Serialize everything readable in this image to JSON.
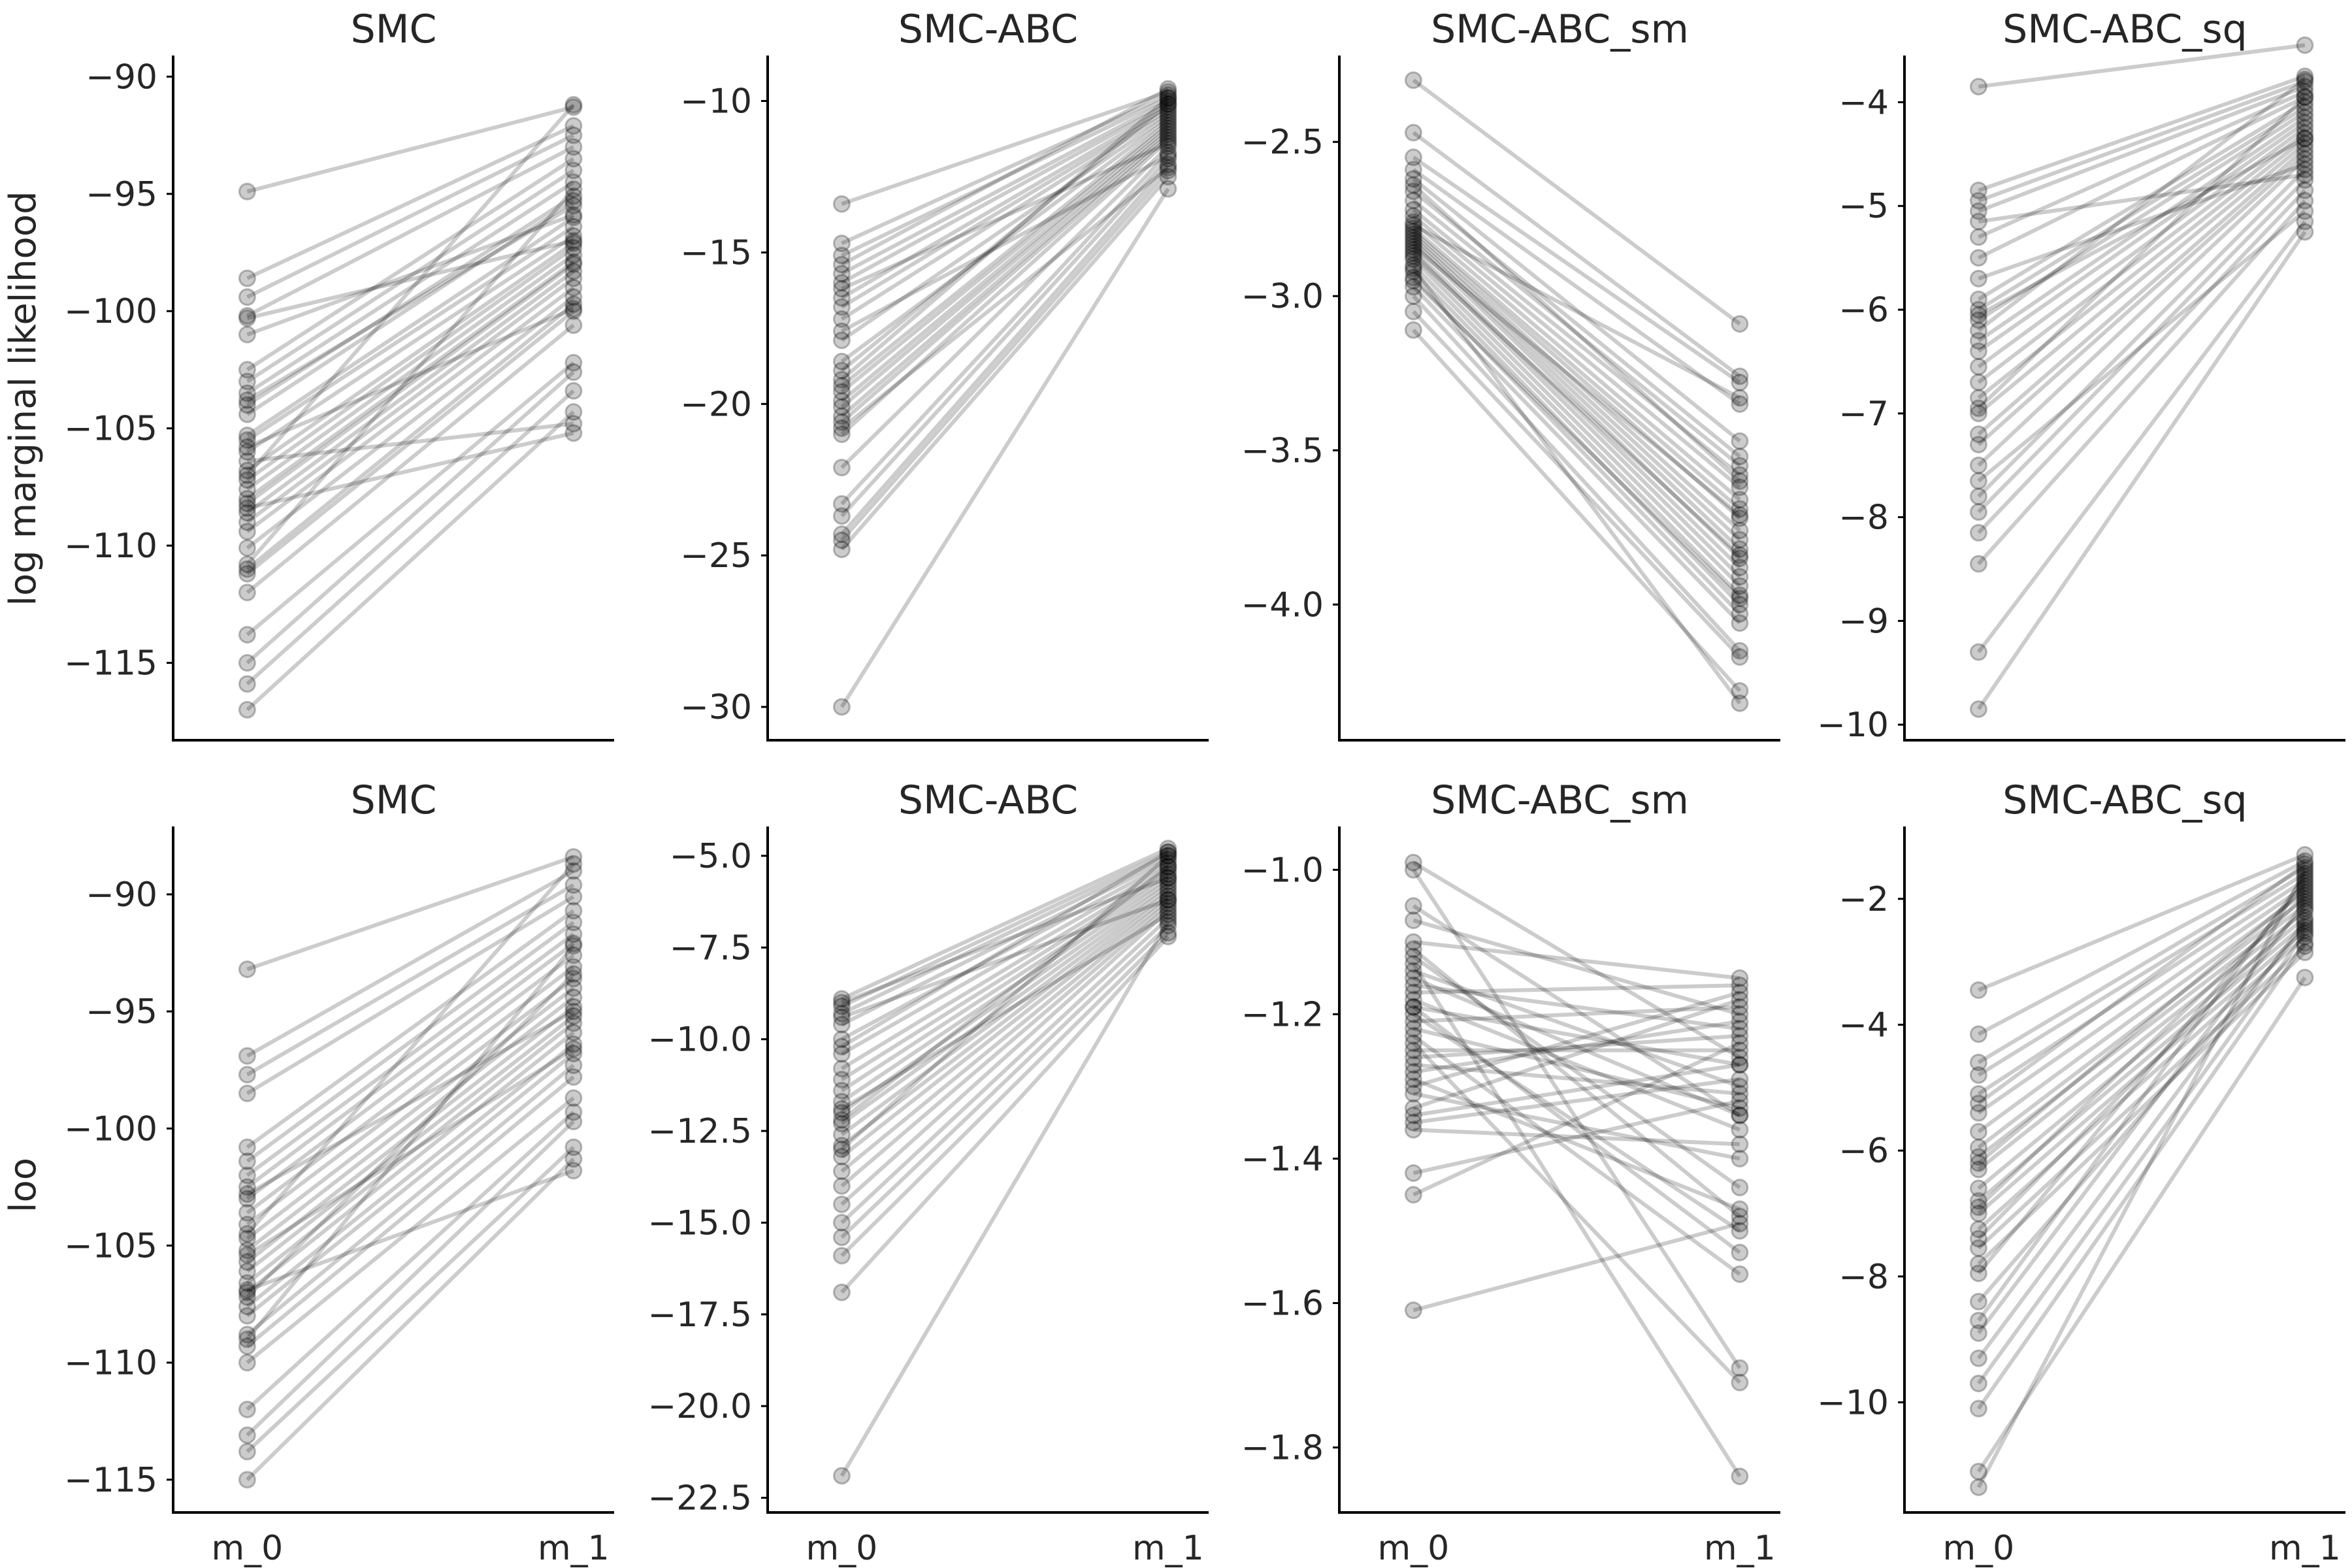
{
  "ylabels": {
    "row0": "log marginal likelihood",
    "row1": "loo"
  },
  "chart_data": [
    {
      "type": "line",
      "title": "SMC",
      "row": 0,
      "col": 0,
      "categories": [],
      "ylim": [
        -118.3,
        -89.1
      ],
      "yticks": [
        -90,
        -95,
        -100,
        -105,
        -110,
        -115
      ],
      "ytick_labels": [
        "−90",
        "−95",
        "−100",
        "−105",
        "−110",
        "−115"
      ],
      "pairs": [
        [
          -94.9,
          -91.3
        ],
        [
          -98.6,
          -92.1
        ],
        [
          -99.4,
          -92.5
        ],
        [
          -100.2,
          -93.0
        ],
        [
          -102.5,
          -93.5
        ],
        [
          -103.0,
          -94.0
        ],
        [
          -103.5,
          -94.5
        ],
        [
          -104.0,
          -95.1
        ],
        [
          -104.4,
          -95.3
        ],
        [
          -105.3,
          -96.0
        ],
        [
          -105.5,
          -96.4
        ],
        [
          -106.0,
          -96.8
        ],
        [
          -106.8,
          -97.1
        ],
        [
          -107.2,
          -97.3
        ],
        [
          -107.6,
          -97.6
        ],
        [
          -108.0,
          -97.9
        ],
        [
          -108.2,
          -98.0
        ],
        [
          -108.6,
          -98.3
        ],
        [
          -109.0,
          -98.6
        ],
        [
          -109.4,
          -99.0
        ],
        [
          -110.1,
          -99.4
        ],
        [
          -111.0,
          -99.7
        ],
        [
          -111.2,
          -100.0
        ],
        [
          -112.0,
          -100.6
        ],
        [
          -113.8,
          -102.2
        ],
        [
          -115.0,
          -102.6
        ],
        [
          -115.9,
          -103.4
        ],
        [
          -117.0,
          -104.3
        ],
        [
          -108.4,
          -105.2
        ],
        [
          -107.0,
          -91.2
        ],
        [
          -103.8,
          -95.5
        ],
        [
          -105.8,
          -99.9
        ],
        [
          -110.8,
          -94.8
        ],
        [
          -100.3,
          -97.0
        ],
        [
          -106.4,
          -104.8
        ],
        [
          -101.0,
          -95.9
        ]
      ]
    },
    {
      "type": "line",
      "title": "SMC-ABC",
      "row": 0,
      "col": 1,
      "categories": [],
      "ylim": [
        -31.1,
        -8.5
      ],
      "yticks": [
        -10,
        -15,
        -20,
        -25,
        -30
      ],
      "ytick_labels": [
        "−10",
        "−15",
        "−20",
        "−25",
        "−30"
      ],
      "pairs": [
        [
          -13.4,
          -9.7
        ],
        [
          -14.7,
          -9.8
        ],
        [
          -15.1,
          -9.9
        ],
        [
          -15.7,
          -10.0
        ],
        [
          -16.0,
          -10.1
        ],
        [
          -16.5,
          -10.2
        ],
        [
          -16.8,
          -10.3
        ],
        [
          -17.2,
          -10.4
        ],
        [
          -17.9,
          -10.5
        ],
        [
          -18.6,
          -10.6
        ],
        [
          -19.4,
          -10.7
        ],
        [
          -19.6,
          -10.8
        ],
        [
          -19.9,
          -10.9
        ],
        [
          -20.1,
          -11.0
        ],
        [
          -20.4,
          -11.1
        ],
        [
          -20.6,
          -11.2
        ],
        [
          -21.0,
          -11.3
        ],
        [
          -22.1,
          -11.5
        ],
        [
          -23.3,
          -11.7
        ],
        [
          -23.7,
          -11.9
        ],
        [
          -24.3,
          -12.1
        ],
        [
          -24.5,
          -12.3
        ],
        [
          -24.8,
          -12.5
        ],
        [
          -30.0,
          -12.9
        ],
        [
          -15.4,
          -9.6
        ],
        [
          -17.6,
          -11.8
        ],
        [
          -18.9,
          -10.1
        ],
        [
          -20.8,
          -12.2
        ],
        [
          -19.2,
          -9.9
        ],
        [
          -16.2,
          -11.4
        ]
      ]
    },
    {
      "type": "line",
      "title": "SMC-ABC_sm",
      "row": 0,
      "col": 2,
      "categories": [],
      "ylim": [
        -4.44,
        -2.22
      ],
      "yticks": [
        -2.5,
        -3.0,
        -3.5,
        -4.0
      ],
      "ytick_labels": [
        "−2.5",
        "−3.0",
        "−3.5",
        "−4.0"
      ],
      "pairs": [
        [
          -2.3,
          -3.09
        ],
        [
          -2.47,
          -3.26
        ],
        [
          -2.55,
          -3.28
        ],
        [
          -2.59,
          -3.35
        ],
        [
          -2.62,
          -3.47
        ],
        [
          -2.66,
          -3.52
        ],
        [
          -2.69,
          -3.55
        ],
        [
          -2.72,
          -3.58
        ],
        [
          -2.74,
          -3.62
        ],
        [
          -2.76,
          -3.66
        ],
        [
          -2.78,
          -3.69
        ],
        [
          -2.79,
          -3.72
        ],
        [
          -2.8,
          -3.76
        ],
        [
          -2.81,
          -3.79
        ],
        [
          -2.82,
          -3.82
        ],
        [
          -2.83,
          -3.85
        ],
        [
          -2.85,
          -3.88
        ],
        [
          -2.86,
          -3.91
        ],
        [
          -2.88,
          -3.94
        ],
        [
          -2.9,
          -3.97
        ],
        [
          -2.92,
          -4.0
        ],
        [
          -2.94,
          -4.03
        ],
        [
          -2.97,
          -4.06
        ],
        [
          -3.0,
          -4.15
        ],
        [
          -3.05,
          -4.17
        ],
        [
          -3.11,
          -4.28
        ],
        [
          -2.91,
          -4.32
        ],
        [
          -2.77,
          -3.33
        ],
        [
          -2.84,
          -3.71
        ],
        [
          -2.87,
          -3.84
        ],
        [
          -2.64,
          -3.6
        ],
        [
          -2.95,
          -3.98
        ]
      ]
    },
    {
      "type": "line",
      "title": "SMC-ABC_sq",
      "row": 0,
      "col": 3,
      "categories": [],
      "ylim": [
        -10.15,
        -3.55
      ],
      "yticks": [
        -4,
        -5,
        -6,
        -7,
        -8,
        -9,
        -10
      ],
      "ytick_labels": [
        "−4",
        "−5",
        "−6",
        "−7",
        "−8",
        "−9",
        "−10"
      ],
      "pairs": [
        [
          -3.85,
          -3.45
        ],
        [
          -4.85,
          -3.75
        ],
        [
          -4.95,
          -3.8
        ],
        [
          -5.05,
          -3.85
        ],
        [
          -5.3,
          -3.9
        ],
        [
          -5.5,
          -3.95
        ],
        [
          -5.9,
          -4.0
        ],
        [
          -6.0,
          -4.05
        ],
        [
          -6.1,
          -4.1
        ],
        [
          -6.3,
          -4.15
        ],
        [
          -6.4,
          -4.2
        ],
        [
          -6.55,
          -4.25
        ],
        [
          -6.7,
          -4.3
        ],
        [
          -6.85,
          -4.35
        ],
        [
          -7.0,
          -4.4
        ],
        [
          -7.2,
          -4.45
        ],
        [
          -7.3,
          -4.5
        ],
        [
          -7.5,
          -4.55
        ],
        [
          -7.8,
          -4.65
        ],
        [
          -7.95,
          -4.75
        ],
        [
          -8.15,
          -4.85
        ],
        [
          -8.45,
          -4.95
        ],
        [
          -9.3,
          -5.15
        ],
        [
          -9.85,
          -5.25
        ],
        [
          -6.2,
          -3.78
        ],
        [
          -5.7,
          -4.6
        ],
        [
          -6.95,
          -3.95
        ],
        [
          -7.65,
          -5.05
        ],
        [
          -6.05,
          -4.35
        ],
        [
          -5.15,
          -4.7
        ]
      ]
    },
    {
      "type": "line",
      "title": "SMC",
      "row": 1,
      "col": 0,
      "categories": [
        "m_0",
        "m_1"
      ],
      "ylim": [
        -116.4,
        -87.1
      ],
      "yticks": [
        -90,
        -95,
        -100,
        -105,
        -110,
        -115
      ],
      "ytick_labels": [
        "−90",
        "−95",
        "−100",
        "−105",
        "−110",
        "−115"
      ],
      "pairs": [
        [
          -93.2,
          -88.4
        ],
        [
          -96.9,
          -89.0
        ],
        [
          -97.7,
          -89.6
        ],
        [
          -98.5,
          -90.1
        ],
        [
          -100.8,
          -90.7
        ],
        [
          -101.4,
          -91.2
        ],
        [
          -102.0,
          -91.7
        ],
        [
          -102.5,
          -92.1
        ],
        [
          -103.0,
          -92.6
        ],
        [
          -103.6,
          -93.1
        ],
        [
          -104.1,
          -93.6
        ],
        [
          -104.7,
          -94.0
        ],
        [
          -105.2,
          -94.4
        ],
        [
          -105.7,
          -94.8
        ],
        [
          -106.1,
          -95.2
        ],
        [
          -106.6,
          -95.5
        ],
        [
          -107.0,
          -95.9
        ],
        [
          -107.6,
          -96.4
        ],
        [
          -108.0,
          -96.8
        ],
        [
          -108.8,
          -97.3
        ],
        [
          -109.3,
          -97.8
        ],
        [
          -110.0,
          -98.7
        ],
        [
          -112.0,
          -99.3
        ],
        [
          -113.1,
          -99.7
        ],
        [
          -113.8,
          -100.8
        ],
        [
          -115.0,
          -101.3
        ],
        [
          -106.9,
          -101.8
        ],
        [
          -104.5,
          -88.7
        ],
        [
          -109.0,
          -92.2
        ],
        [
          -102.8,
          -95.0
        ],
        [
          -107.2,
          -93.4
        ],
        [
          -105.4,
          -96.6
        ]
      ]
    },
    {
      "type": "line",
      "title": "SMC-ABC",
      "row": 1,
      "col": 1,
      "categories": [
        "m_0",
        "m_1"
      ],
      "ylim": [
        -22.9,
        -4.2
      ],
      "yticks": [
        -5.0,
        -7.5,
        -10.0,
        -12.5,
        -15.0,
        -17.5,
        -20.0,
        -22.5
      ],
      "ytick_labels": [
        "−5.0",
        "−7.5",
        "−10.0",
        "−12.5",
        "−15.0",
        "−17.5",
        "−20.0",
        "−22.5"
      ],
      "pairs": [
        [
          -8.9,
          -4.8
        ],
        [
          -9.1,
          -4.9
        ],
        [
          -9.3,
          -5.0
        ],
        [
          -9.6,
          -5.1
        ],
        [
          -10.0,
          -5.2
        ],
        [
          -10.4,
          -5.3
        ],
        [
          -10.8,
          -5.4
        ],
        [
          -11.1,
          -5.5
        ],
        [
          -11.4,
          -5.6
        ],
        [
          -11.7,
          -5.7
        ],
        [
          -12.0,
          -5.8
        ],
        [
          -12.3,
          -5.9
        ],
        [
          -12.6,
          -6.0
        ],
        [
          -12.9,
          -6.1
        ],
        [
          -13.2,
          -6.2
        ],
        [
          -13.6,
          -6.3
        ],
        [
          -14.0,
          -6.4
        ],
        [
          -14.5,
          -6.5
        ],
        [
          -15.0,
          -6.7
        ],
        [
          -15.4,
          -6.9
        ],
        [
          -15.9,
          -7.1
        ],
        [
          -16.9,
          -7.2
        ],
        [
          -21.9,
          -6.8
        ],
        [
          -9.0,
          -5.6
        ],
        [
          -10.2,
          -4.9
        ],
        [
          -11.9,
          -6.6
        ],
        [
          -13.0,
          -5.0
        ],
        [
          -9.4,
          -6.2
        ],
        [
          -12.2,
          -5.3
        ]
      ]
    },
    {
      "type": "line",
      "title": "SMC-ABC_sm",
      "row": 1,
      "col": 2,
      "categories": [
        "m_0",
        "m_1"
      ],
      "ylim": [
        -1.89,
        -0.94
      ],
      "yticks": [
        -1.0,
        -1.2,
        -1.4,
        -1.6,
        -1.8
      ],
      "ytick_labels": [
        "−1.0",
        "−1.2",
        "−1.4",
        "−1.6",
        "−1.8"
      ],
      "pairs": [
        [
          -0.99,
          -1.26
        ],
        [
          -1.0,
          -1.69
        ],
        [
          -1.05,
          -1.34
        ],
        [
          -1.07,
          -1.2
        ],
        [
          -1.1,
          -1.15
        ],
        [
          -1.11,
          -1.48
        ],
        [
          -1.14,
          -1.3
        ],
        [
          -1.16,
          -1.22
        ],
        [
          -1.17,
          -1.16
        ],
        [
          -1.18,
          -1.36
        ],
        [
          -1.19,
          -1.27
        ],
        [
          -1.2,
          -1.5
        ],
        [
          -1.21,
          -1.19
        ],
        [
          -1.22,
          -1.33
        ],
        [
          -1.23,
          -1.56
        ],
        [
          -1.25,
          -1.25
        ],
        [
          -1.27,
          -1.31
        ],
        [
          -1.28,
          -1.21
        ],
        [
          -1.31,
          -1.4
        ],
        [
          -1.33,
          -1.18
        ],
        [
          -1.35,
          -1.29
        ],
        [
          -1.36,
          -1.38
        ],
        [
          -1.42,
          -1.32
        ],
        [
          -1.45,
          -1.24
        ],
        [
          -1.61,
          -1.49
        ],
        [
          -1.13,
          -1.84
        ],
        [
          -1.24,
          -1.71
        ],
        [
          -1.29,
          -1.47
        ],
        [
          -1.15,
          -1.34
        ],
        [
          -1.3,
          -1.17
        ],
        [
          -1.12,
          -1.44
        ],
        [
          -1.26,
          -1.23
        ],
        [
          -1.19,
          -1.53
        ],
        [
          -1.34,
          -1.27
        ]
      ]
    },
    {
      "type": "line",
      "title": "SMC-ABC_sq",
      "row": 1,
      "col": 3,
      "categories": [
        "m_0",
        "m_1"
      ],
      "ylim": [
        -11.75,
        -0.85
      ],
      "yticks": [
        -2,
        -4,
        -6,
        -8,
        -10
      ],
      "ytick_labels": [
        "−2",
        "−4",
        "−6",
        "−8",
        "−10"
      ],
      "pairs": [
        [
          -3.45,
          -1.3
        ],
        [
          -4.15,
          -1.4
        ],
        [
          -4.6,
          -1.5
        ],
        [
          -4.8,
          -1.6
        ],
        [
          -5.1,
          -1.7
        ],
        [
          -5.4,
          -1.8
        ],
        [
          -5.7,
          -1.9
        ],
        [
          -5.95,
          -2.0
        ],
        [
          -6.1,
          -2.1
        ],
        [
          -6.3,
          -2.2
        ],
        [
          -6.6,
          -2.3
        ],
        [
          -6.8,
          -2.4
        ],
        [
          -7.0,
          -2.5
        ],
        [
          -7.25,
          -2.6
        ],
        [
          -7.55,
          -2.75
        ],
        [
          -7.8,
          -2.85
        ],
        [
          -7.95,
          -1.75
        ],
        [
          -8.7,
          -1.65
        ],
        [
          -8.9,
          -2.05
        ],
        [
          -9.3,
          -2.35
        ],
        [
          -9.7,
          -2.55
        ],
        [
          -10.1,
          -2.7
        ],
        [
          -11.1,
          -3.25
        ],
        [
          -11.35,
          -1.55
        ],
        [
          -6.2,
          -1.85
        ],
        [
          -7.4,
          -2.15
        ],
        [
          -5.25,
          -1.45
        ],
        [
          -8.4,
          -2.45
        ],
        [
          -6.9,
          -1.95
        ]
      ]
    }
  ]
}
